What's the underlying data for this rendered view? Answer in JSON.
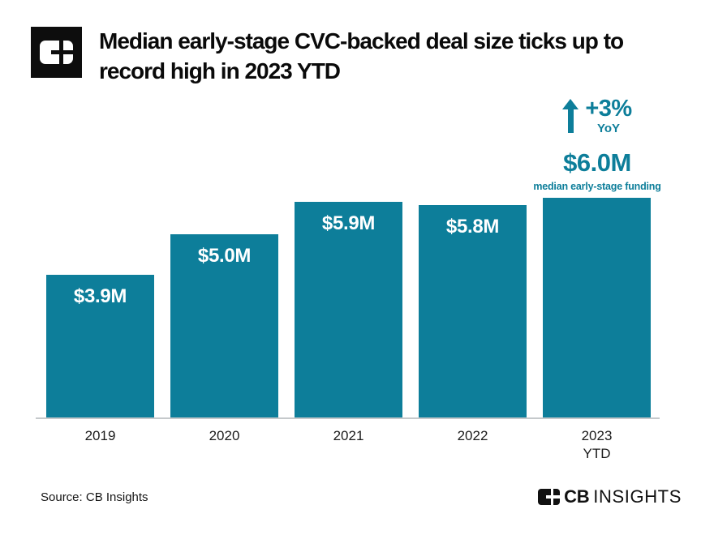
{
  "header": {
    "title_lines": [
      "Median early-stage CVC-backed deal size ticks up to",
      "record high in 2023 YTD"
    ]
  },
  "chart_data": {
    "type": "bar",
    "title": "Median early-stage CVC-backed deal size ticks up to record high in 2023 YTD",
    "categories": [
      "2019",
      "2020",
      "2021",
      "2022",
      "2023\nYTD"
    ],
    "values": [
      3.9,
      5.0,
      5.9,
      5.8,
      6.0
    ],
    "bar_labels": [
      "$3.9M",
      "$5.0M",
      "$5.9M",
      "$5.8M",
      ""
    ],
    "xlabel": "",
    "ylabel": "",
    "ylim": [
      0,
      6.0
    ],
    "grid": false,
    "legend": false,
    "annotation": {
      "arrow": "up",
      "change": "+3%",
      "change_period": "YoY",
      "value": "$6.0M",
      "value_caption": "median early-stage funding"
    }
  },
  "footer": {
    "source": "Source: CB Insights",
    "brand_bold": "CB",
    "brand_light": "INSIGHTS"
  },
  "colors": {
    "teal": "#0d7e9a",
    "axis_line": "#c5c9cb",
    "title_text": "#0a0a0a",
    "bar_label_text": "#ffffff"
  }
}
